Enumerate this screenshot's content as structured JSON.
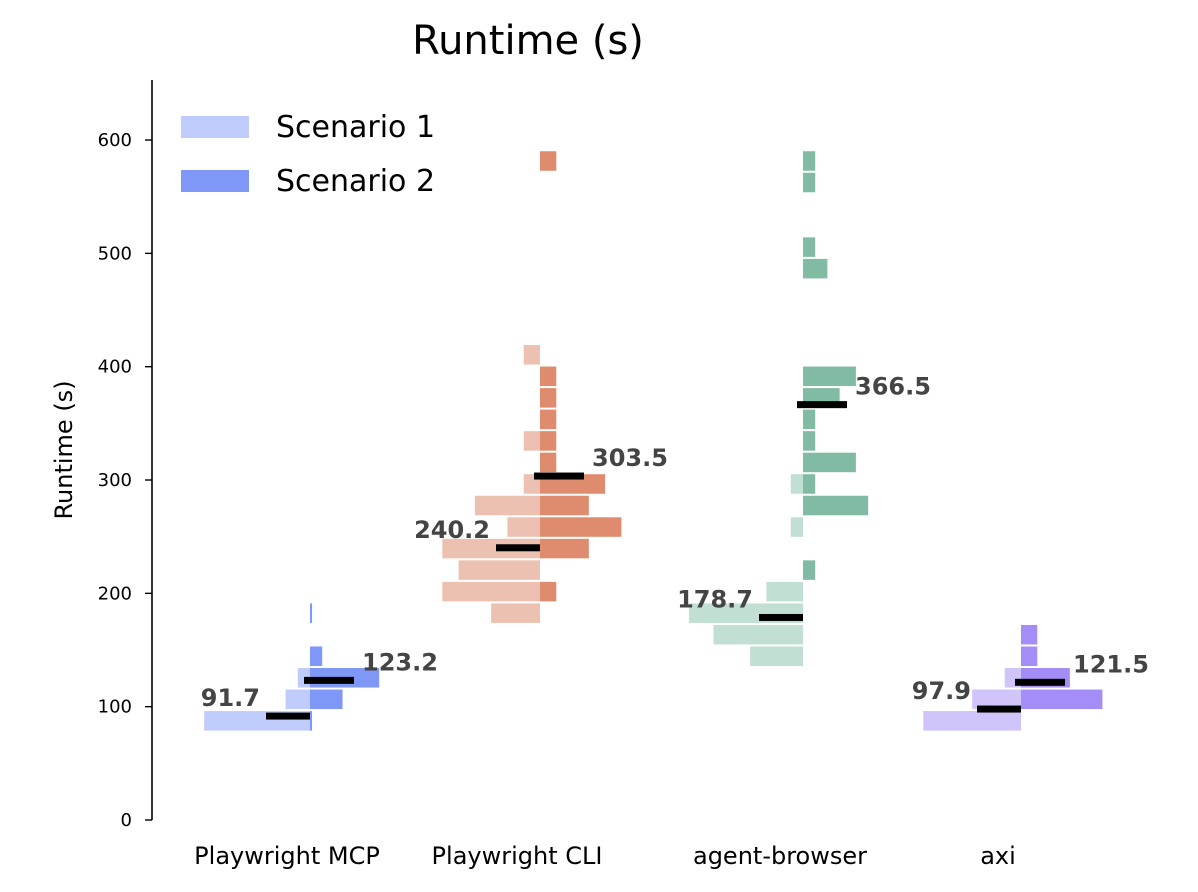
{
  "chart_data": {
    "type": "bar",
    "subtype": "split histogram strip plot with medians",
    "title": "Runtime (s)",
    "xlabel": "",
    "ylabel": "Runtime (s)",
    "ylim": [
      0,
      650
    ],
    "yticks": [
      0,
      100,
      200,
      300,
      400,
      500,
      600
    ],
    "bin_width": 19,
    "count_unit_ratio": 0.0556,
    "grid": false,
    "legend_placement": "top-left",
    "legend": [
      {
        "label": "Scenario 1",
        "color": "#c0ccfb"
      },
      {
        "label": "Scenario 2",
        "color": "#7f98f8"
      }
    ],
    "categories": [
      "Playwright MCP",
      "Playwright CLI",
      "agent-browser",
      "axi"
    ],
    "groups": [
      {
        "name": "Playwright MCP",
        "color_s1": "#c0ccfb",
        "color_s2": "#7f98f8",
        "scenario1": {
          "median": 91.7,
          "median_label": "91.7",
          "bins": [
            {
              "y": 78,
              "count": 26
            },
            {
              "y": 97,
              "count": 6
            },
            {
              "y": 116,
              "count": 3
            }
          ]
        },
        "scenario2": {
          "median": 123.2,
          "median_label": "123.2",
          "bins": [
            {
              "y": 78,
              "count": 0.5
            },
            {
              "y": 97,
              "count": 8
            },
            {
              "y": 116,
              "count": 17
            },
            {
              "y": 135,
              "count": 3
            },
            {
              "y": 173,
              "count": 0.5
            }
          ]
        }
      },
      {
        "name": "Playwright CLI",
        "color_s1": "#edc1b1",
        "color_s2": "#df8c6e",
        "scenario1": {
          "median": 240.2,
          "median_label": "240.2",
          "bins": [
            {
              "y": 173,
              "count": 12
            },
            {
              "y": 192,
              "count": 24
            },
            {
              "y": 211,
              "count": 20
            },
            {
              "y": 230,
              "count": 24
            },
            {
              "y": 249,
              "count": 8
            },
            {
              "y": 268,
              "count": 16
            },
            {
              "y": 287,
              "count": 4
            },
            {
              "y": 325,
              "count": 4
            },
            {
              "y": 401,
              "count": 4
            }
          ]
        },
        "scenario2": {
          "median": 303.5,
          "median_label": "303.5",
          "bins": [
            {
              "y": 192,
              "count": 4
            },
            {
              "y": 230,
              "count": 12
            },
            {
              "y": 249,
              "count": 20
            },
            {
              "y": 268,
              "count": 12
            },
            {
              "y": 287,
              "count": 16
            },
            {
              "y": 306,
              "count": 4
            },
            {
              "y": 325,
              "count": 4
            },
            {
              "y": 344,
              "count": 4
            },
            {
              "y": 363,
              "count": 4
            },
            {
              "y": 382,
              "count": 4
            },
            {
              "y": 572,
              "count": 4
            }
          ]
        }
      },
      {
        "name": "agent-browser",
        "color_s1": "#c1dfd3",
        "color_s2": "#82bba4",
        "scenario1": {
          "median": 178.7,
          "median_label": "178.7",
          "bins": [
            {
              "y": 135,
              "count": 13
            },
            {
              "y": 154,
              "count": 22
            },
            {
              "y": 173,
              "count": 28
            },
            {
              "y": 192,
              "count": 9
            },
            {
              "y": 249,
              "count": 3
            },
            {
              "y": 287,
              "count": 3
            }
          ]
        },
        "scenario2": {
          "median": 366.5,
          "median_label": "366.5",
          "bins": [
            {
              "y": 211,
              "count": 3
            },
            {
              "y": 268,
              "count": 16
            },
            {
              "y": 287,
              "count": 3
            },
            {
              "y": 306,
              "count": 13
            },
            {
              "y": 325,
              "count": 3
            },
            {
              "y": 344,
              "count": 3
            },
            {
              "y": 363,
              "count": 9
            },
            {
              "y": 382,
              "count": 13
            },
            {
              "y": 477,
              "count": 6
            },
            {
              "y": 496,
              "count": 3
            },
            {
              "y": 553,
              "count": 3
            },
            {
              "y": 572,
              "count": 3
            }
          ]
        }
      },
      {
        "name": "axi",
        "color_s1": "#d0c4fb",
        "color_s2": "#a58df8",
        "scenario1": {
          "median": 97.9,
          "median_label": "97.9",
          "bins": [
            {
              "y": 78,
              "count": 24
            },
            {
              "y": 97,
              "count": 12
            },
            {
              "y": 116,
              "count": 4
            }
          ]
        },
        "scenario2": {
          "median": 121.5,
          "median_label": "121.5",
          "bins": [
            {
              "y": 97,
              "count": 20
            },
            {
              "y": 116,
              "count": 12
            },
            {
              "y": 135,
              "count": 4
            },
            {
              "y": 154,
              "count": 4
            }
          ]
        }
      }
    ]
  }
}
